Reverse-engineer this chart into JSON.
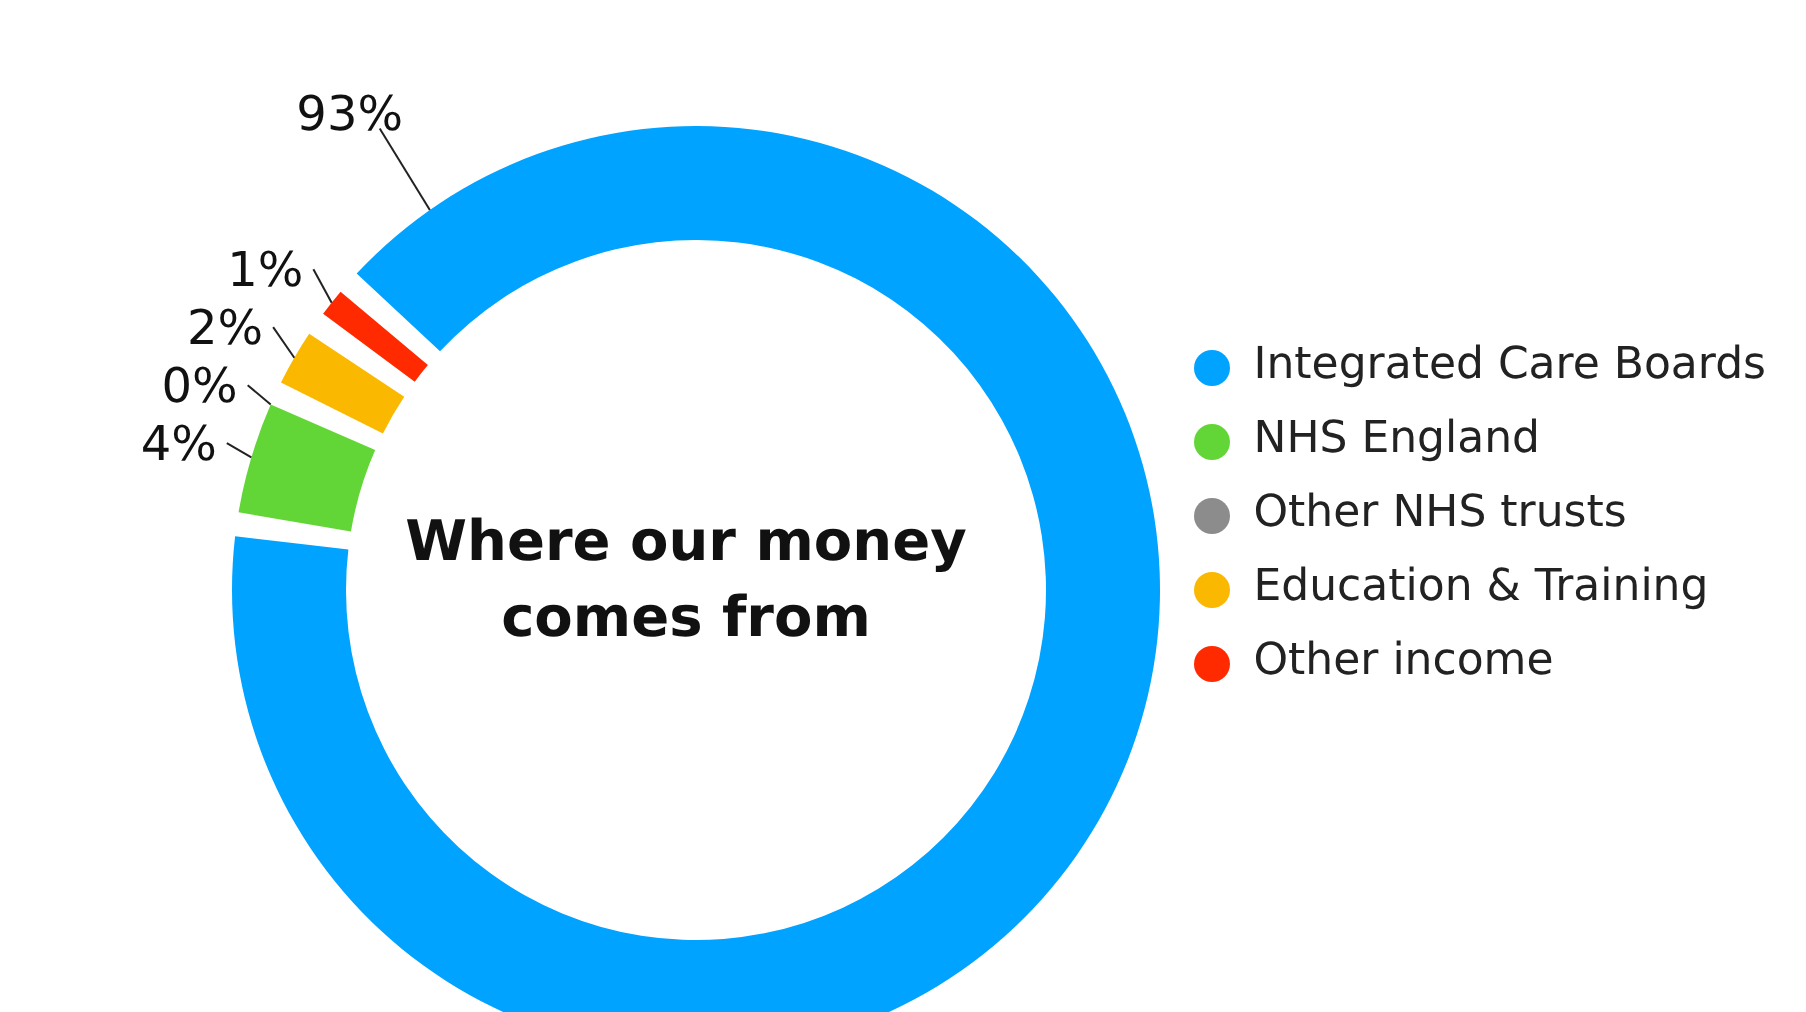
{
  "chart_data": {
    "type": "donut",
    "title": "Where our money comes from",
    "categories": [
      "Integrated Care Boards",
      "NHS England",
      "Other NHS trusts",
      "Education & Training",
      "Other income"
    ],
    "values": [
      93,
      4,
      0,
      2,
      1
    ],
    "value_labels": [
      "93%",
      "4%",
      "0%",
      "2%",
      "1%"
    ],
    "colors": [
      "#00a3ff",
      "#63d637",
      "#8c8c8c",
      "#fbb800",
      "#ff2a00"
    ],
    "legend": "right"
  }
}
